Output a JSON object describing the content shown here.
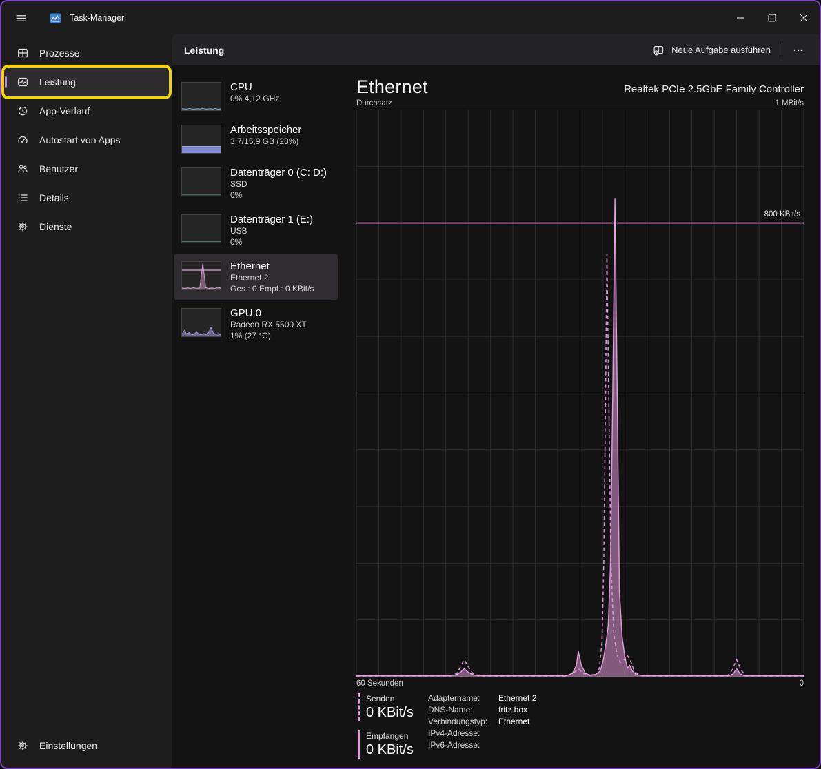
{
  "titlebar": {
    "title": "Task-Manager"
  },
  "header": {
    "tab_title": "Leistung",
    "new_task_label": "Neue Aufgabe ausführen"
  },
  "sidebar": {
    "items": [
      {
        "label": "Prozesse",
        "icon": "processes-icon",
        "selected": false
      },
      {
        "label": "Leistung",
        "icon": "performance-icon",
        "selected": true,
        "annotated": true
      },
      {
        "label": "App-Verlauf",
        "icon": "history-icon",
        "selected": false
      },
      {
        "label": "Autostart von Apps",
        "icon": "startup-icon",
        "selected": false
      },
      {
        "label": "Benutzer",
        "icon": "users-icon",
        "selected": false
      },
      {
        "label": "Details",
        "icon": "details-icon",
        "selected": false
      },
      {
        "label": "Dienste",
        "icon": "services-icon",
        "selected": false
      }
    ],
    "settings_label": "Einstellungen"
  },
  "perf_list": [
    {
      "name": "CPU",
      "sub1": "0% 4,12 GHz",
      "sub2": "",
      "spark": {
        "type": "line",
        "color": "#7cc0ea",
        "fill": "rgba(124,192,234,0.18)",
        "values": [
          4,
          3,
          3,
          5,
          3,
          3,
          4,
          3,
          6,
          3,
          3,
          4,
          3,
          5,
          3,
          3
        ]
      }
    },
    {
      "name": "Arbeitsspeicher",
      "sub1": "3,7/15,9 GB (23%)",
      "sub2": "",
      "spark": {
        "type": "memory",
        "pct": 23,
        "color": "#7f89d4",
        "topline": "#bcc3f2"
      }
    },
    {
      "name": "Datenträger 0 (C: D:)",
      "sub1": "SSD",
      "sub2": "0%",
      "spark": {
        "type": "line",
        "color": "#5d8d85",
        "fill": "none",
        "values": [
          2,
          2,
          2,
          2,
          2,
          2,
          2,
          2,
          2,
          2
        ]
      }
    },
    {
      "name": "Datenträger 1 (E:)",
      "sub1": "USB",
      "sub2": "0%",
      "spark": {
        "type": "line",
        "color": "#5d8d85",
        "fill": "none",
        "values": [
          2,
          2,
          2,
          2,
          2,
          2,
          2,
          2,
          2,
          2
        ]
      }
    },
    {
      "name": "Ethernet",
      "sub1": "Ethernet 2",
      "sub2": "Ges.: 0 Empf.: 0 KBit/s",
      "selected": true,
      "spark": {
        "type": "line",
        "color": "#e2a0db",
        "fill": "rgba(226,160,219,0.45)",
        "hline": 70,
        "values": [
          4,
          3,
          4,
          3,
          5,
          3,
          4,
          97,
          6,
          3,
          4,
          3,
          6,
          4
        ]
      }
    },
    {
      "name": "GPU 0",
      "sub1": "Radeon RX 5500 XT",
      "sub2": "1% (27 °C)",
      "spark": {
        "type": "line",
        "color": "#a89ae0",
        "fill": "rgba(168,154,224,0.55)",
        "values": [
          8,
          20,
          7,
          13,
          5,
          6,
          15,
          7,
          5,
          9,
          5,
          12,
          32,
          11,
          6,
          9,
          4
        ]
      }
    }
  ],
  "main": {
    "title": "Ethernet",
    "controller": "Realtek PCIe 2.5GbE Family Controller",
    "ylabel": "Durchsatz",
    "ymax_label": "1 MBit/s",
    "threshold_label": "800 KBit/s",
    "x_left_label": "60 Sekunden",
    "x_right_label": "0"
  },
  "stats": [
    {
      "label": "Senden",
      "value": "0 KBit/s",
      "line_style": "dashed"
    },
    {
      "label": "Empfangen",
      "value": "0 KBit/s",
      "line_style": "solid"
    }
  ],
  "details": [
    {
      "label": "Adaptername:",
      "value": "Ethernet 2"
    },
    {
      "label": "DNS-Name:",
      "value": "fritz.box"
    },
    {
      "label": "Verbindungstyp:",
      "value": "Ethernet"
    },
    {
      "label": "IPv4-Adresse:",
      "value": ""
    },
    {
      "label": "IPv6-Adresse:",
      "value": ""
    }
  ],
  "colors": {
    "window_border": "#8445c0",
    "annotation_yellow": "#f3d402",
    "accent_purple": "#b78ee6",
    "pink_line": "#e5a0de",
    "pink_dashed": "#da93d3",
    "pink_threshold": "#f0a3eb",
    "pink_fill": "rgba(221,150,213,0.55)",
    "grid": "#2d2d2e",
    "chart_bg": "#131314"
  },
  "icons": {
    "titlebar": [
      "hamburger-icon",
      "app-icon",
      "minimize-icon",
      "maximize-icon",
      "close-icon"
    ],
    "header": [
      "new-task-icon",
      "ellipsis-icon"
    ],
    "sidebar": [
      "processes-icon",
      "performance-icon",
      "history-icon",
      "startup-icon",
      "users-icon",
      "details-icon",
      "services-icon",
      "gear-icon"
    ]
  },
  "chart_data": {
    "type": "area",
    "title": "Ethernet Durchsatz",
    "xlabel": "60 Sekunden (links) bis 0 (rechts)",
    "ylabel": "Durchsatz",
    "y_unit": "KBit/s",
    "ylim": [
      0,
      1000
    ],
    "x_range_seconds": 60,
    "grid": true,
    "grid_cols": 20,
    "grid_rows": 10,
    "legend_position": "none",
    "threshold_line": {
      "value": 800,
      "label": "800 KBit/s"
    },
    "series": [
      {
        "name": "Empfangen",
        "style": "solid",
        "points": [
          [
            0,
            2
          ],
          [
            0.15,
            2
          ],
          [
            0.205,
            2
          ],
          [
            0.222,
            3
          ],
          [
            0.233,
            8
          ],
          [
            0.241,
            14
          ],
          [
            0.25,
            8
          ],
          [
            0.262,
            3
          ],
          [
            0.28,
            2
          ],
          [
            0.44,
            2
          ],
          [
            0.47,
            2
          ],
          [
            0.483,
            6
          ],
          [
            0.492,
            20
          ],
          [
            0.496,
            45
          ],
          [
            0.503,
            20
          ],
          [
            0.512,
            6
          ],
          [
            0.522,
            3
          ],
          [
            0.535,
            4
          ],
          [
            0.545,
            10
          ],
          [
            0.552,
            30
          ],
          [
            0.558,
            60
          ],
          [
            0.563,
            90
          ],
          [
            0.568,
            200
          ],
          [
            0.573,
            500
          ],
          [
            0.578,
            843
          ],
          [
            0.583,
            500
          ],
          [
            0.588,
            150
          ],
          [
            0.594,
            70
          ],
          [
            0.6,
            35
          ],
          [
            0.606,
            15
          ],
          [
            0.611,
            20
          ],
          [
            0.617,
            10
          ],
          [
            0.625,
            4
          ],
          [
            0.64,
            2
          ],
          [
            0.8,
            2
          ],
          [
            0.832,
            2
          ],
          [
            0.842,
            5
          ],
          [
            0.85,
            14
          ],
          [
            0.858,
            5
          ],
          [
            0.868,
            2
          ],
          [
            1,
            2
          ]
        ]
      },
      {
        "name": "Senden",
        "style": "dashed",
        "points": [
          [
            0,
            1
          ],
          [
            0.15,
            1
          ],
          [
            0.21,
            1
          ],
          [
            0.225,
            6
          ],
          [
            0.233,
            18
          ],
          [
            0.241,
            30
          ],
          [
            0.25,
            18
          ],
          [
            0.26,
            6
          ],
          [
            0.272,
            1
          ],
          [
            0.47,
            1
          ],
          [
            0.488,
            8
          ],
          [
            0.496,
            14
          ],
          [
            0.505,
            8
          ],
          [
            0.515,
            2
          ],
          [
            0.535,
            3
          ],
          [
            0.543,
            15
          ],
          [
            0.549,
            60
          ],
          [
            0.553,
            200
          ],
          [
            0.557,
            500
          ],
          [
            0.56,
            745
          ],
          [
            0.564,
            500
          ],
          [
            0.569,
            200
          ],
          [
            0.575,
            80
          ],
          [
            0.582,
            40
          ],
          [
            0.59,
            25
          ],
          [
            0.598,
            30
          ],
          [
            0.605,
            38
          ],
          [
            0.612,
            30
          ],
          [
            0.62,
            12
          ],
          [
            0.63,
            3
          ],
          [
            0.645,
            1
          ],
          [
            0.83,
            1
          ],
          [
            0.84,
            12
          ],
          [
            0.85,
            30
          ],
          [
            0.86,
            12
          ],
          [
            0.87,
            1
          ],
          [
            1,
            1
          ]
        ]
      }
    ]
  }
}
